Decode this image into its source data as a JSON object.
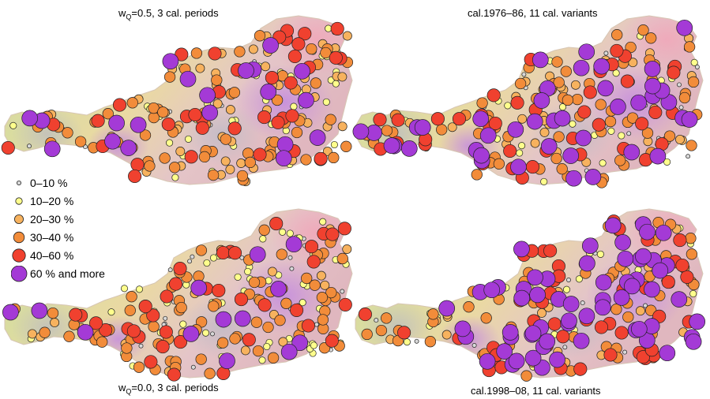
{
  "panels": [
    {
      "id": "tl",
      "title_main": "w",
      "title_sub": "Q",
      "title_rest": "=0.5, 3 cal. periods",
      "mix": [
        0.06,
        0.22,
        0.16,
        0.28,
        0.2,
        0.08
      ],
      "seed": 11
    },
    {
      "id": "tr",
      "title_main": "cal.1976–86, 11 cal. variants",
      "title_sub": "",
      "title_rest": "",
      "mix": [
        0.1,
        0.14,
        0.12,
        0.3,
        0.14,
        0.2
      ],
      "seed": 23
    },
    {
      "id": "bl",
      "title_main": "w",
      "title_sub": "Q",
      "title_rest": "=0.0, 3 cal. periods",
      "mix": [
        0.1,
        0.24,
        0.12,
        0.32,
        0.14,
        0.08
      ],
      "seed": 37
    },
    {
      "id": "br",
      "title_main": "cal.1998–08, 11 cal. variants",
      "title_sub": "",
      "title_rest": "",
      "mix": [
        0.08,
        0.12,
        0.1,
        0.2,
        0.22,
        0.28
      ],
      "seed": 53
    }
  ],
  "legend": [
    {
      "label": "0–10  %",
      "color": "#d9d9d9",
      "size": 3
    },
    {
      "label": "10–20 %",
      "color": "#ffff8c",
      "size": 4.5
    },
    {
      "label": "20–30 %",
      "color": "#f7b25e",
      "size": 6
    },
    {
      "label": "30–40 %",
      "color": "#f28c3a",
      "size": 7
    },
    {
      "label": "40–60 %",
      "color": "#f0412f",
      "size": 8
    },
    {
      "label": "60 % and more",
      "color": "#a43ad6",
      "size": 9.5
    }
  ]
}
